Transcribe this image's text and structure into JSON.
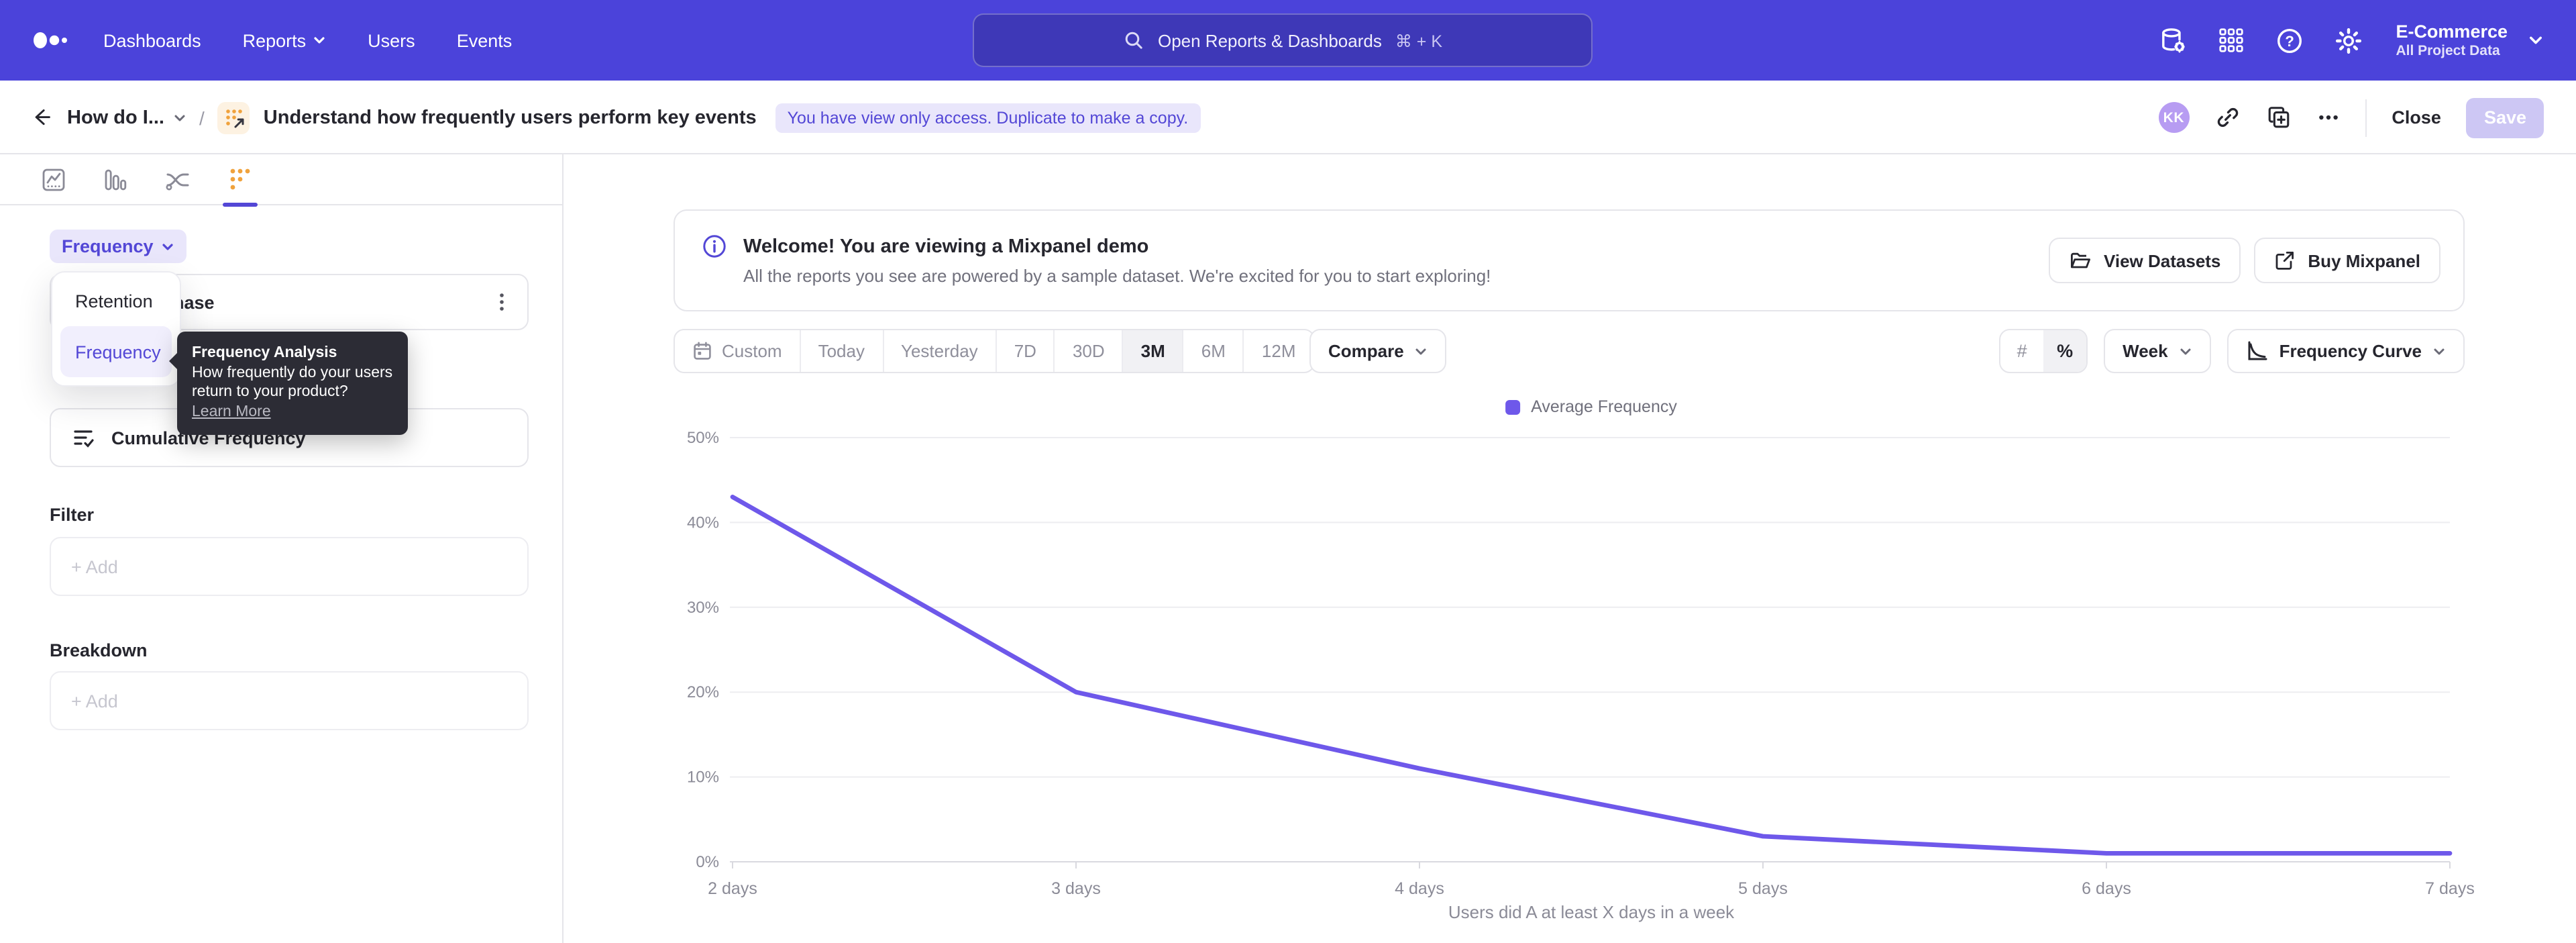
{
  "colors": {
    "topbar": "#4b43da",
    "accent": "#5347d6",
    "accent_bg": "#e9e6fb",
    "accent_bg2": "#f1effd",
    "line": "#6e58ea",
    "orange": "#f0a23c",
    "text": "#26262e",
    "border": "#e5e5ea",
    "tooltip": "#2c2c35",
    "save_bg": "#cdc7f4",
    "avatar": "#b79cf2"
  },
  "topnav": {
    "items": [
      {
        "label": "Dashboards"
      },
      {
        "label": "Reports"
      },
      {
        "label": "Users"
      },
      {
        "label": "Events"
      }
    ],
    "search": {
      "placeholder": "Open Reports & Dashboards",
      "shortcut": "⌘ + K"
    },
    "project": {
      "name": "E-Commerce",
      "scope": "All Project Data"
    }
  },
  "header": {
    "breadcrumb": "How do I...",
    "separator": "/",
    "title": "Understand how frequently users perform key events",
    "badge": "You have view only access. Duplicate to make a copy.",
    "avatar_initials": "KK",
    "close_label": "Close",
    "save_label": "Save"
  },
  "sidebar": {
    "analysis_selector": "Frequency",
    "event_name": "Purchase",
    "cumulative_label": "Cumulative Frequency",
    "dropdown": {
      "options": [
        {
          "label": "Retention",
          "selected": false
        },
        {
          "label": "Frequency",
          "selected": true
        }
      ]
    },
    "tooltip": {
      "title": "Frequency Analysis",
      "line1": "How frequently do your users",
      "line2": "return to your product?",
      "link": "Learn More"
    },
    "filter": {
      "heading": "Filter",
      "add_label": "+ Add"
    },
    "breakdown": {
      "heading": "Breakdown",
      "add_label": "+ Add"
    }
  },
  "banner": {
    "title": "Welcome! You are viewing a Mixpanel demo",
    "subtitle": "All the reports you see are powered by a sample dataset. We're excited for you to start exploring!",
    "view_datasets_label": "View Datasets",
    "buy_mixpanel_label": "Buy Mixpanel"
  },
  "toolbar": {
    "date_ranges": [
      "Custom",
      "Today",
      "Yesterday",
      "7D",
      "30D",
      "3M",
      "6M",
      "12M"
    ],
    "selected_range": "3M",
    "compare_label": "Compare",
    "number_toggle": "#",
    "percent_toggle": "%",
    "interval_label": "Week",
    "chart_type_label": "Frequency Curve"
  },
  "chart_data": {
    "type": "line",
    "title": "",
    "xlabel": "Users did A at least X days in a week",
    "ylabel": "",
    "x_labels": [
      "2 days",
      "3 days",
      "4 days",
      "5 days",
      "6 days",
      "7 days"
    ],
    "series": [
      {
        "name": "Average Frequency",
        "color": "#6e58ea",
        "values": [
          43,
          20,
          11,
          3,
          1,
          1
        ]
      }
    ],
    "legend": [
      {
        "name": "Average Frequency",
        "color": "#6e58ea"
      }
    ],
    "legend_position": "top-center",
    "ylim": [
      0,
      50
    ],
    "yticks": [
      0,
      10,
      20,
      30,
      40,
      50
    ],
    "ytick_suffix": "%",
    "grid": true
  }
}
